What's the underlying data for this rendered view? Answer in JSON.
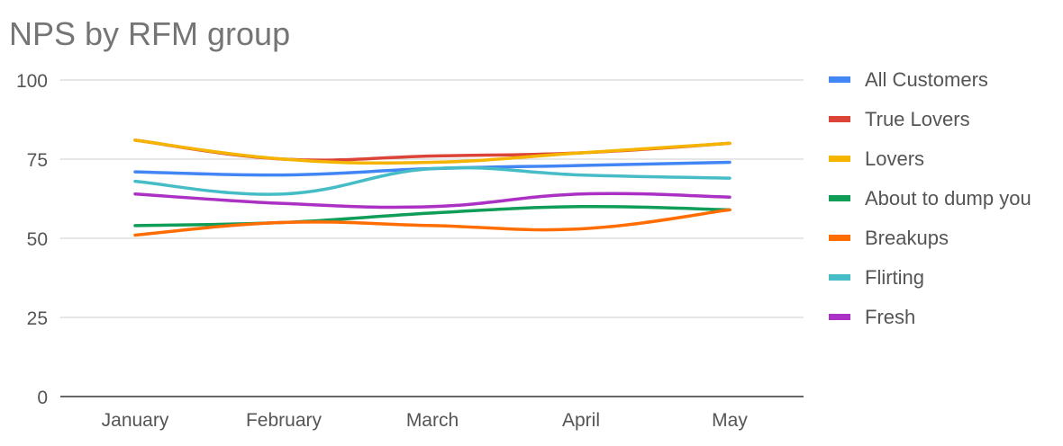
{
  "chart_data": {
    "type": "line",
    "title": "NPS by RFM group",
    "xlabel": "",
    "ylabel": "",
    "categories": [
      "January",
      "February",
      "March",
      "April",
      "May"
    ],
    "ylim": [
      0,
      100
    ],
    "yticks": [
      0,
      25,
      50,
      75,
      100
    ],
    "grid": true,
    "legend_position": "right",
    "series": [
      {
        "name": "All Customers",
        "color": "#4285F4",
        "values": [
          71,
          70,
          72,
          73,
          74
        ]
      },
      {
        "name": "True Lovers",
        "color": "#DB4437",
        "values": [
          81,
          75,
          76,
          77,
          80
        ]
      },
      {
        "name": "Lovers",
        "color": "#F4B400",
        "values": [
          81,
          75,
          74,
          77,
          80
        ]
      },
      {
        "name": "About to dump you",
        "color": "#0F9D58",
        "values": [
          54,
          55,
          58,
          60,
          59
        ]
      },
      {
        "name": "Breakups",
        "color": "#FF6D00",
        "values": [
          51,
          55,
          54,
          53,
          59
        ]
      },
      {
        "name": "Flirting",
        "color": "#46BDC6",
        "values": [
          68,
          64,
          72,
          70,
          69
        ]
      },
      {
        "name": "Fresh",
        "color": "#AB30C4",
        "values": [
          64,
          61,
          60,
          64,
          63
        ]
      }
    ]
  }
}
